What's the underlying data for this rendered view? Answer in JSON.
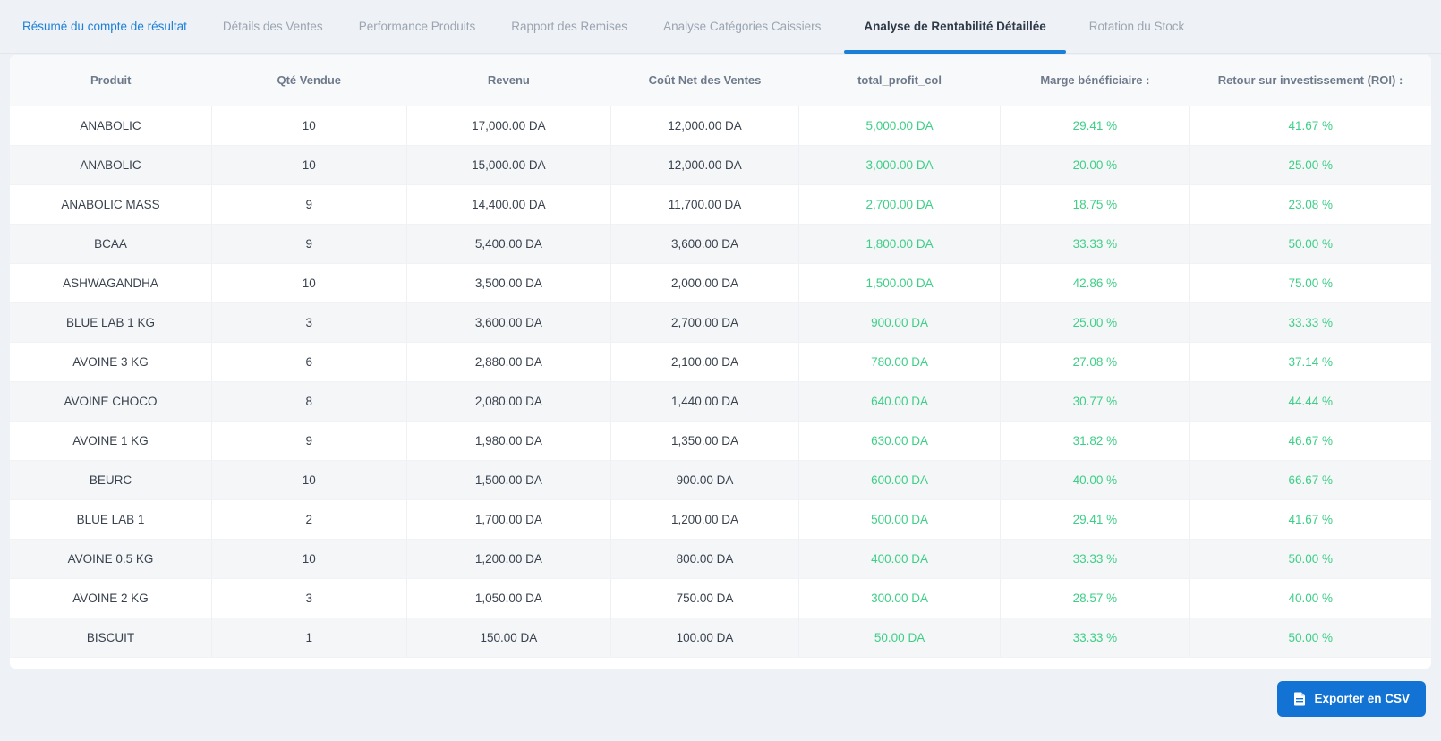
{
  "tabs": [
    {
      "label": "Résumé du compte de résultat",
      "highlighted": true,
      "active": false
    },
    {
      "label": "Détails des Ventes",
      "highlighted": false,
      "active": false
    },
    {
      "label": "Performance Produits",
      "highlighted": false,
      "active": false
    },
    {
      "label": "Rapport des Remises",
      "highlighted": false,
      "active": false
    },
    {
      "label": "Analyse Catégories Caissiers",
      "highlighted": false,
      "active": false
    },
    {
      "label": "Analyse de Rentabilité Détaillée",
      "highlighted": false,
      "active": true
    },
    {
      "label": "Rotation du Stock",
      "highlighted": false,
      "active": false
    }
  ],
  "table": {
    "columns": [
      "Produit",
      "Qté Vendue",
      "Revenu",
      "Coût Net des Ventes",
      "total_profit_col",
      "Marge bénéficiaire :",
      "Retour sur investissement (ROI) :"
    ],
    "rows": [
      [
        "ANABOLIC",
        "10",
        "17,000.00 DA",
        "12,000.00 DA",
        "5,000.00 DA",
        "29.41 %",
        "41.67 %"
      ],
      [
        "ANABOLIC",
        "10",
        "15,000.00 DA",
        "12,000.00 DA",
        "3,000.00 DA",
        "20.00 %",
        "25.00 %"
      ],
      [
        "ANABOLIC MASS",
        "9",
        "14,400.00 DA",
        "11,700.00 DA",
        "2,700.00 DA",
        "18.75 %",
        "23.08 %"
      ],
      [
        "BCAA",
        "9",
        "5,400.00 DA",
        "3,600.00 DA",
        "1,800.00 DA",
        "33.33 %",
        "50.00 %"
      ],
      [
        "ASHWAGANDHA",
        "10",
        "3,500.00 DA",
        "2,000.00 DA",
        "1,500.00 DA",
        "42.86 %",
        "75.00 %"
      ],
      [
        "BLUE LAB 1 KG",
        "3",
        "3,600.00 DA",
        "2,700.00 DA",
        "900.00 DA",
        "25.00 %",
        "33.33 %"
      ],
      [
        "AVOINE 3 KG",
        "6",
        "2,880.00 DA",
        "2,100.00 DA",
        "780.00 DA",
        "27.08 %",
        "37.14 %"
      ],
      [
        "AVOINE CHOCO",
        "8",
        "2,080.00 DA",
        "1,440.00 DA",
        "640.00 DA",
        "30.77 %",
        "44.44 %"
      ],
      [
        "AVOINE 1 KG",
        "9",
        "1,980.00 DA",
        "1,350.00 DA",
        "630.00 DA",
        "31.82 %",
        "46.67 %"
      ],
      [
        "BEURC",
        "10",
        "1,500.00 DA",
        "900.00 DA",
        "600.00 DA",
        "40.00 %",
        "66.67 %"
      ],
      [
        "BLUE LAB 1",
        "2",
        "1,700.00 DA",
        "1,200.00 DA",
        "500.00 DA",
        "29.41 %",
        "41.67 %"
      ],
      [
        "AVOINE 0.5 KG",
        "10",
        "1,200.00 DA",
        "800.00 DA",
        "400.00 DA",
        "33.33 %",
        "50.00 %"
      ],
      [
        "AVOINE 2 KG",
        "3",
        "1,050.00 DA",
        "750.00 DA",
        "300.00 DA",
        "28.57 %",
        "40.00 %"
      ],
      [
        "BISCUIT",
        "1",
        "150.00 DA",
        "100.00 DA",
        "50.00 DA",
        "33.33 %",
        "50.00 %"
      ]
    ]
  },
  "footer": {
    "export_button_label": "Exporter en CSV"
  },
  "colors": {
    "positive_green": "#3ecf87",
    "accent_blue": "#1b7fd8",
    "button_blue": "#1273d4",
    "page_background": "#eef1f5"
  }
}
